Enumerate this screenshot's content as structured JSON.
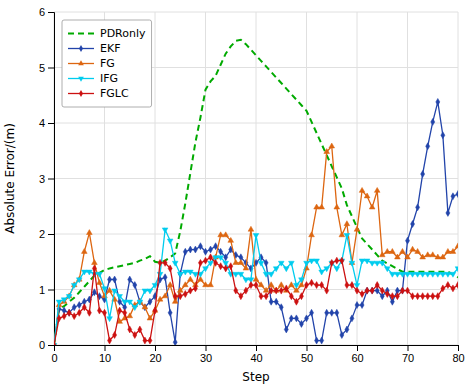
{
  "chart_data": {
    "type": "line",
    "xlabel": "Step",
    "ylabel": "Absolute Error/(m)",
    "xlim": [
      0,
      80
    ],
    "ylim": [
      0,
      6
    ],
    "xticks": [
      0,
      10,
      20,
      30,
      40,
      50,
      60,
      70,
      80
    ],
    "yticks": [
      0,
      1,
      2,
      3,
      4,
      5,
      6
    ],
    "grid": true,
    "legend": "upper left",
    "x": [
      0,
      1,
      2,
      3,
      4,
      5,
      6,
      7,
      8,
      9,
      10,
      11,
      12,
      13,
      14,
      15,
      16,
      17,
      18,
      19,
      20,
      21,
      22,
      23,
      24,
      25,
      26,
      27,
      28,
      29,
      30,
      31,
      32,
      33,
      34,
      35,
      36,
      37,
      38,
      39,
      40,
      41,
      42,
      43,
      44,
      45,
      46,
      47,
      48,
      49,
      50,
      51,
      52,
      53,
      54,
      55,
      56,
      57,
      58,
      59,
      60,
      61,
      62,
      63,
      64,
      65,
      66,
      67,
      68,
      69,
      70,
      71,
      72,
      73,
      74,
      75,
      76,
      77,
      78,
      79,
      80
    ],
    "series": [
      {
        "name": "PDRonly",
        "color": "#00aa00",
        "line_style": "dashed",
        "values": [
          0.0,
          0.65,
          0.7,
          0.78,
          0.85,
          0.95,
          1.05,
          1.15,
          1.25,
          1.3,
          1.35,
          1.38,
          1.4,
          1.42,
          1.44,
          1.46,
          1.48,
          1.52,
          1.55,
          1.6,
          1.5,
          1.48,
          1.52,
          1.58,
          1.65,
          2.05,
          2.55,
          3.1,
          3.65,
          4.1,
          4.6,
          4.75,
          4.85,
          5.05,
          5.25,
          5.38,
          5.48,
          5.5,
          5.42,
          5.32,
          5.22,
          5.12,
          5.02,
          4.92,
          4.82,
          4.72,
          4.62,
          4.52,
          4.42,
          4.32,
          4.22,
          4.02,
          3.82,
          3.62,
          3.42,
          3.22,
          3.02,
          2.82,
          2.52,
          2.32,
          2.12,
          1.92,
          1.82,
          1.72,
          1.62,
          1.52,
          1.47,
          1.42,
          1.37,
          1.32,
          1.32,
          1.32,
          1.32,
          1.32,
          1.32,
          1.32,
          1.32,
          1.32,
          1.32,
          1.27,
          1.22
        ]
      },
      {
        "name": "EKF",
        "color": "#2244aa",
        "line_style": "solid",
        "marker": "diamond",
        "values": [
          0.0,
          0.65,
          0.62,
          0.58,
          0.68,
          0.72,
          0.78,
          0.82,
          0.95,
          0.88,
          0.82,
          1.18,
          1.18,
          0.78,
          0.68,
          1.18,
          1.08,
          0.78,
          0.68,
          0.78,
          0.88,
          1.18,
          1.22,
          0.58,
          0.05,
          1.28,
          1.68,
          1.72,
          1.72,
          1.78,
          1.68,
          1.72,
          1.78,
          1.68,
          1.58,
          1.72,
          1.62,
          1.58,
          1.48,
          1.38,
          1.48,
          1.58,
          1.48,
          0.78,
          0.78,
          0.68,
          0.28,
          0.48,
          0.48,
          0.38,
          0.48,
          0.58,
          0.08,
          0.08,
          0.58,
          0.58,
          0.58,
          0.18,
          0.28,
          0.48,
          0.72,
          0.72,
          0.98,
          0.98,
          0.98,
          0.88,
          0.98,
          0.78,
          0.98,
          0.98,
          1.88,
          2.18,
          2.48,
          3.08,
          3.58,
          4.02,
          4.38,
          3.78,
          2.38,
          2.68,
          2.72
        ]
      },
      {
        "name": "FG",
        "color": "#dd6611",
        "line_style": "solid",
        "marker": "triangle-up",
        "values": [
          0.0,
          0.72,
          0.78,
          0.88,
          1.08,
          1.18,
          1.68,
          2.02,
          1.48,
          1.12,
          0.88,
          0.98,
          0.82,
          0.42,
          0.48,
          0.52,
          0.72,
          0.78,
          0.68,
          0.48,
          0.62,
          0.82,
          0.88,
          1.08,
          0.78,
          0.98,
          1.08,
          1.18,
          1.08,
          1.18,
          1.08,
          1.08,
          1.58,
          1.98,
          1.98,
          1.88,
          1.48,
          1.48,
          1.38,
          2.08,
          1.18,
          1.08,
          0.98,
          1.08,
          0.98,
          1.08,
          0.98,
          1.08,
          0.98,
          1.08,
          1.38,
          1.98,
          2.48,
          2.48,
          3.48,
          3.58,
          2.48,
          1.98,
          2.18,
          1.48,
          2.08,
          2.78,
          2.68,
          2.48,
          2.78,
          1.62,
          1.68,
          1.68,
          1.58,
          1.68,
          1.58,
          1.72,
          1.68,
          1.58,
          1.62,
          1.62,
          1.58,
          1.58,
          1.68,
          1.68,
          1.78
        ]
      },
      {
        "name": "IFG",
        "color": "#00ccee",
        "line_style": "solid",
        "marker": "triangle-down",
        "values": [
          0.0,
          0.78,
          0.82,
          0.88,
          1.08,
          1.18,
          1.32,
          1.32,
          1.28,
          1.28,
          1.02,
          0.48,
          0.98,
          0.88,
          0.78,
          0.78,
          0.68,
          0.78,
          0.98,
          0.98,
          1.08,
          1.28,
          2.08,
          1.88,
          1.48,
          1.28,
          1.32,
          1.32,
          1.28,
          1.28,
          1.38,
          1.48,
          1.58,
          1.58,
          1.48,
          1.28,
          1.28,
          1.28,
          1.18,
          1.18,
          1.98,
          1.48,
          1.28,
          1.28,
          1.38,
          1.48,
          1.38,
          1.48,
          1.08,
          1.18,
          1.48,
          1.52,
          1.52,
          1.32,
          1.38,
          1.48,
          1.38,
          1.52,
          1.98,
          1.48,
          1.08,
          1.52,
          1.52,
          1.48,
          1.48,
          1.48,
          1.38,
          1.28,
          1.28,
          1.28,
          1.28,
          1.28,
          1.28,
          1.28,
          1.28,
          1.28,
          1.28,
          1.28,
          1.28,
          1.28,
          1.38
        ]
      },
      {
        "name": "FGLC",
        "color": "#cc1111",
        "line_style": "solid",
        "marker": "diamond",
        "values": [
          0.0,
          0.48,
          0.52,
          0.58,
          0.52,
          0.58,
          0.68,
          0.58,
          1.38,
          0.62,
          0.58,
          0.08,
          0.18,
          0.62,
          0.58,
          0.28,
          0.18,
          0.28,
          0.08,
          0.08,
          0.62,
          1.48,
          1.48,
          1.38,
          0.88,
          0.88,
          0.92,
          0.98,
          1.02,
          1.48,
          1.52,
          1.58,
          1.48,
          1.42,
          1.38,
          1.42,
          0.98,
          0.88,
          0.98,
          1.08,
          1.08,
          0.88,
          0.88,
          0.98,
          0.98,
          0.98,
          1.02,
          0.88,
          0.78,
          0.88,
          1.08,
          1.12,
          1.08,
          1.08,
          0.98,
          1.48,
          1.52,
          1.52,
          1.08,
          1.08,
          0.98,
          0.92,
          0.98,
          0.98,
          1.08,
          0.98,
          0.92,
          0.88,
          0.88,
          0.98,
          0.98,
          0.88,
          0.88,
          0.88,
          0.88,
          0.88,
          0.88,
          1.02,
          1.08,
          1.02,
          1.08
        ]
      }
    ]
  }
}
